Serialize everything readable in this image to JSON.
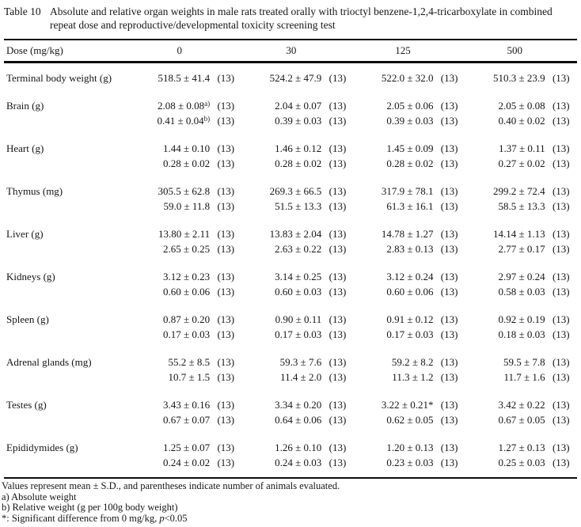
{
  "page": {
    "background": "#ffffff",
    "text_color": "#161616",
    "rule_color": "#0d0d0d"
  },
  "title": {
    "label": "Table 10",
    "text": "Absolute and relative organ weights in male rats treated orally with trioctyl benzene-1,2,4-tricarboxylate in combined repeat dose and reproductive/developmental toxicity screening test"
  },
  "table": {
    "dose_label": "Dose (mg/kg)",
    "doses": [
      "0",
      "30",
      "125",
      "500"
    ],
    "rows": [
      {
        "label": "Terminal body weight (g)",
        "group_start": false,
        "values": [
          "518.5 ± 41.4",
          "524.2 ± 47.9",
          "522.0 ± 32.0",
          "510.3 ± 23.9"
        ],
        "counts": [
          "(13)",
          "(13)",
          "(13)",
          "(13)"
        ]
      },
      {
        "label": "Brain (g)",
        "group_start": true,
        "values": [
          {
            "text": "2.08 ± 0.08",
            "sup": "a)"
          },
          "2.04 ± 0.07",
          "2.05 ± 0.06",
          "2.05 ± 0.08"
        ],
        "counts": [
          "(13)",
          "(13)",
          "(13)",
          "(13)"
        ]
      },
      {
        "label": "",
        "group_start": false,
        "values": [
          {
            "text": "0.41 ± 0.04",
            "sup": "b)"
          },
          "0.39 ± 0.03",
          "0.39 ± 0.03",
          "0.40 ± 0.02"
        ],
        "counts": [
          "(13)",
          "(13)",
          "(13)",
          "(13)"
        ]
      },
      {
        "label": "Heart (g)",
        "group_start": true,
        "values": [
          "1.44 ± 0.10",
          "1.46 ± 0.12",
          "1.45 ± 0.09",
          "1.37 ± 0.11"
        ],
        "counts": [
          "(13)",
          "(13)",
          "(13)",
          "(13)"
        ]
      },
      {
        "label": "",
        "group_start": false,
        "values": [
          "0.28 ± 0.02",
          "0.28 ± 0.02",
          "0.28 ± 0.02",
          "0.27 ± 0.02"
        ],
        "counts": [
          "(13)",
          "(13)",
          "(13)",
          "(13)"
        ]
      },
      {
        "label": "Thymus (mg)",
        "group_start": true,
        "values": [
          "305.5 ± 62.8",
          "269.3 ± 66.5",
          "317.9 ± 78.1",
          "299.2 ± 72.4"
        ],
        "counts": [
          "(13)",
          "(13)",
          "(13)",
          "(13)"
        ]
      },
      {
        "label": "",
        "group_start": false,
        "values": [
          "59.0 ± 11.8",
          "51.5 ± 13.3",
          "61.3 ± 16.1",
          "58.5 ± 13.3"
        ],
        "counts": [
          "(13)",
          "(13)",
          "(13)",
          "(13)"
        ]
      },
      {
        "label": "Liver (g)",
        "group_start": true,
        "values": [
          "13.80 ± 2.11",
          "13.83 ± 2.04",
          "14.78 ± 1.27",
          "14.14 ± 1.13"
        ],
        "counts": [
          "(13)",
          "(13)",
          "(13)",
          "(13)"
        ]
      },
      {
        "label": "",
        "group_start": false,
        "values": [
          "2.65 ± 0.25",
          "2.63 ± 0.22",
          "2.83 ± 0.13",
          "2.77 ± 0.17"
        ],
        "counts": [
          "(13)",
          "(13)",
          "(13)",
          "(13)"
        ]
      },
      {
        "label": "Kidneys (g)",
        "group_start": true,
        "values": [
          "3.12 ± 0.23",
          "3.14 ± 0.25",
          "3.12 ± 0.24",
          "2.97 ± 0.24"
        ],
        "counts": [
          "(13)",
          "(13)",
          "(13)",
          "(13)"
        ]
      },
      {
        "label": "",
        "group_start": false,
        "values": [
          "0.60 ± 0.06",
          "0.60 ± 0.03",
          "0.60 ± 0.06",
          "0.58 ± 0.03"
        ],
        "counts": [
          "(13)",
          "(13)",
          "(13)",
          "(13)"
        ]
      },
      {
        "label": "Spleen (g)",
        "group_start": true,
        "values": [
          "0.87 ± 0.20",
          "0.90 ± 0.11",
          "0.91 ± 0.12",
          "0.92 ± 0.19"
        ],
        "counts": [
          "(13)",
          "(13)",
          "(13)",
          "(13)"
        ]
      },
      {
        "label": "",
        "group_start": false,
        "values": [
          "0.17 ± 0.03",
          "0.17 ± 0.03",
          "0.17 ± 0.03",
          "0.18 ± 0.03"
        ],
        "counts": [
          "(13)",
          "(13)",
          "(13)",
          "(13)"
        ]
      },
      {
        "label": "Adrenal glands (mg)",
        "group_start": true,
        "values": [
          "55.2 ± 8.5",
          "59.3 ± 7.6",
          "59.2 ± 8.2",
          "59.5 ± 7.8"
        ],
        "counts": [
          "(13)",
          "(13)",
          "(13)",
          "(13)"
        ]
      },
      {
        "label": "",
        "group_start": false,
        "values": [
          "10.7 ± 1.5",
          "11.4 ± 2.0",
          "11.3 ± 1.2",
          "11.7 ± 1.6"
        ],
        "counts": [
          "(13)",
          "(13)",
          "(13)",
          "(13)"
        ]
      },
      {
        "label": "Testes (g)",
        "group_start": true,
        "values": [
          "3.43 ± 0.16",
          "3.34 ± 0.20",
          "3.22 ± 0.21*",
          "3.42 ± 0.22"
        ],
        "counts": [
          "(13)",
          "(13)",
          "(13)",
          "(13)"
        ]
      },
      {
        "label": "",
        "group_start": false,
        "values": [
          "0.67 ± 0.07",
          "0.64 ± 0.06",
          "0.62 ± 0.05",
          "0.67 ± 0.05"
        ],
        "counts": [
          "(13)",
          "(13)",
          "(13)",
          "(13)"
        ]
      },
      {
        "label": "Epididymides (g)",
        "group_start": true,
        "values": [
          "1.25 ± 0.07",
          "1.26 ± 0.10",
          "1.20 ± 0.13",
          "1.27 ± 0.13"
        ],
        "counts": [
          "(13)",
          "(13)",
          "(13)",
          "(13)"
        ]
      },
      {
        "label": "",
        "group_start": false,
        "values": [
          "0.24 ± 0.02",
          "0.24 ± 0.03",
          "0.23 ± 0.03",
          "0.25 ± 0.03"
        ],
        "counts": [
          "(13)",
          "(13)",
          "(13)",
          "(13)"
        ]
      }
    ]
  },
  "footnotes": {
    "line1": "Values represent mean ± S.D., and parentheses indicate number of animals evaluated.",
    "line2": "a) Absolute weight",
    "line3": "b) Relative weight (g per 100g body weight)",
    "line4_prefix": "*: Significant difference from 0 mg/kg, ",
    "line4_italic": "p",
    "line4_suffix": "<0.05"
  }
}
